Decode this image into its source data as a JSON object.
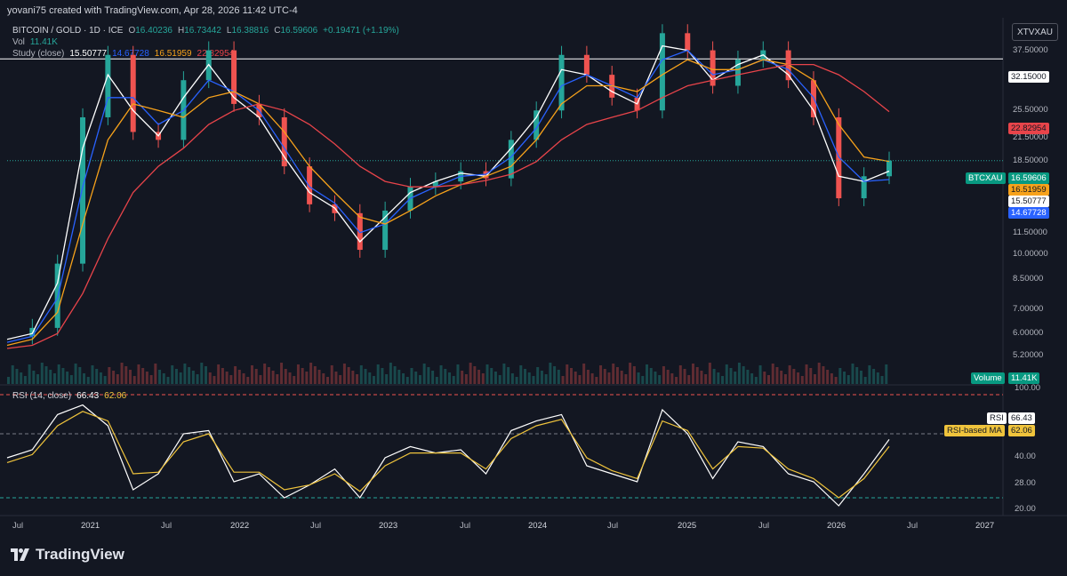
{
  "header": {
    "credit": "yovani75 created with TradingView.com, Apr 28, 2026 11:42 UTC-4"
  },
  "legend": {
    "symbol": "BITCOIN / GOLD · 1D · ICE",
    "o_label": "O",
    "o": "16.40236",
    "h_label": "H",
    "h": "16.73442",
    "l_label": "L",
    "l": "16.38816",
    "c_label": "C",
    "c": "16.59606",
    "change": "+0.19471 (+1.19%)",
    "vol_label": "Vol",
    "vol": "11.41K",
    "study_label": "Study (close)",
    "study_values": [
      "15.50777",
      "14.67728",
      "16.51959",
      "22.82954"
    ]
  },
  "rsi_legend": {
    "label": "RSI (14, close)",
    "rsi": "66.43",
    "ma": "62.06"
  },
  "symbol_box": "XTVXAU",
  "price_axis": {
    "ticks": [
      "37.50000",
      "25.50000",
      "21.50000",
      "18.50000",
      "11.50000",
      "10.00000",
      "8.50000",
      "7.00000",
      "6.00000",
      "5.20000"
    ],
    "labels": {
      "hline": "32.15000",
      "ma_red": "22.82954",
      "name": "BTCXAU",
      "price": "16.59606",
      "ma_orange": "16.51959",
      "ma_white": "15.50777",
      "ma_blue": "14.67728",
      "volume_name": "Volume",
      "volume": "11.41K"
    }
  },
  "rsi_axis": {
    "ticks": [
      "100.00",
      "40.00",
      "28.00",
      "20.00"
    ],
    "labels": {
      "rsi_name": "RSI",
      "rsi": "66.43",
      "ma_name": "RSI-based MA",
      "ma": "62.06"
    }
  },
  "time_axis": {
    "ticks": [
      "Jul",
      "2021",
      "Jul",
      "2022",
      "Jul",
      "2023",
      "Jul",
      "2024",
      "Jul",
      "2025",
      "Jul",
      "2026",
      "Jul",
      "2027"
    ]
  },
  "branding": {
    "logo_text": "TradingView"
  },
  "colors": {
    "background": "#131722",
    "up": "#26a69a",
    "down": "#ef5350",
    "ma_white": "#ffffff",
    "ma_blue": "#2962ff",
    "ma_orange": "#f7a21b",
    "ma_red": "#e8444a",
    "rsi": "#ffffff",
    "rsi_ma": "#f0c43c"
  },
  "chart_data": [
    {
      "type": "candlestick",
      "title": "BITCOIN / GOLD · 1D · ICE",
      "scale": "log",
      "ylim": [
        4.9,
        42
      ],
      "x": [
        "2020-07",
        "2020-09",
        "2020-11",
        "2021-01",
        "2021-03",
        "2021-05",
        "2021-07",
        "2021-09",
        "2021-11",
        "2022-01",
        "2022-03",
        "2022-05",
        "2022-07",
        "2022-09",
        "2022-11",
        "2023-01",
        "2023-03",
        "2023-05",
        "2023-07",
        "2023-09",
        "2023-11",
        "2024-01",
        "2024-03",
        "2024-05",
        "2024-07",
        "2024-09",
        "2024-11",
        "2025-01",
        "2025-03",
        "2025-05",
        "2025-07",
        "2025-09",
        "2025-11",
        "2026-01",
        "2026-03",
        "2026-04"
      ],
      "close": [
        5.3,
        5.6,
        8.5,
        22,
        33,
        20,
        19,
        28,
        34,
        24,
        22,
        16,
        12.5,
        11.8,
        9.3,
        12,
        14,
        14.5,
        15.5,
        14.8,
        19,
        23,
        33,
        29,
        25,
        23,
        38,
        34,
        27,
        32,
        34,
        28,
        22,
        13,
        15,
        16.6
      ],
      "series": [
        {
          "name": "Study (close)",
          "color": "#ffffff",
          "values": [
            5.2,
            5.4,
            7.5,
            18,
            29,
            23,
            19.5,
            25,
            31,
            25,
            22,
            17,
            13.5,
            12.2,
            9.8,
            11.5,
            13.5,
            14.5,
            15.3,
            15,
            18,
            22,
            30,
            29,
            26,
            24,
            35,
            34,
            28,
            31,
            33,
            29,
            23,
            15,
            14.5,
            15.51
          ]
        },
        {
          "name": "Study (close)",
          "color": "#2962ff",
          "values": [
            5.1,
            5.3,
            6.8,
            14,
            25,
            25,
            21,
            23,
            28,
            26,
            23,
            18,
            14,
            12.6,
            10.4,
            11,
            13,
            14,
            15,
            15.2,
            17,
            20.5,
            27,
            29,
            27,
            25,
            32,
            34,
            29,
            30,
            32,
            30,
            25,
            17,
            14.5,
            14.68
          ]
        },
        {
          "name": "Study (close)",
          "color": "#f7a21b",
          "values": [
            5,
            5.2,
            6.2,
            11,
            19,
            24,
            23,
            22,
            25,
            26,
            24,
            20,
            16,
            13.5,
            11.5,
            11,
            12,
            13.2,
            14.2,
            15,
            16,
            19,
            24,
            27,
            27,
            26,
            29,
            32,
            30,
            30,
            32,
            31,
            28,
            21,
            17,
            16.52
          ]
        },
        {
          "name": "Study (close)",
          "color": "#e8444a",
          "values": [
            4.9,
            5,
            5.4,
            7,
            10,
            13.5,
            16,
            18,
            21,
            23,
            24,
            23,
            21,
            18.5,
            16,
            14.5,
            14,
            14,
            14.2,
            14.6,
            15.2,
            16.5,
            19,
            21,
            22,
            23,
            25,
            27,
            28,
            29,
            30,
            31,
            31,
            29,
            26,
            22.83
          ]
        }
      ],
      "hline": 32.15,
      "volume": "11.41K"
    },
    {
      "type": "line",
      "title": "RSI (14, close)",
      "ylim": [
        20,
        100
      ],
      "bands": [
        70,
        30
      ],
      "series": [
        {
          "name": "RSI",
          "color": "#ffffff",
          "values": [
            55,
            60,
            82,
            88,
            75,
            35,
            45,
            70,
            72,
            40,
            45,
            30,
            38,
            48,
            30,
            55,
            62,
            58,
            60,
            45,
            72,
            78,
            82,
            50,
            45,
            40,
            85,
            70,
            42,
            65,
            62,
            45,
            40,
            25,
            45,
            66.43
          ]
        },
        {
          "name": "RSI-based MA",
          "color": "#f0c43c",
          "values": [
            52,
            57,
            75,
            84,
            78,
            45,
            46,
            65,
            70,
            46,
            46,
            35,
            38,
            45,
            34,
            50,
            58,
            58,
            58,
            48,
            67,
            75,
            79,
            55,
            47,
            42,
            78,
            72,
            48,
            62,
            61,
            48,
            42,
            30,
            42,
            62.06
          ]
        }
      ]
    }
  ]
}
